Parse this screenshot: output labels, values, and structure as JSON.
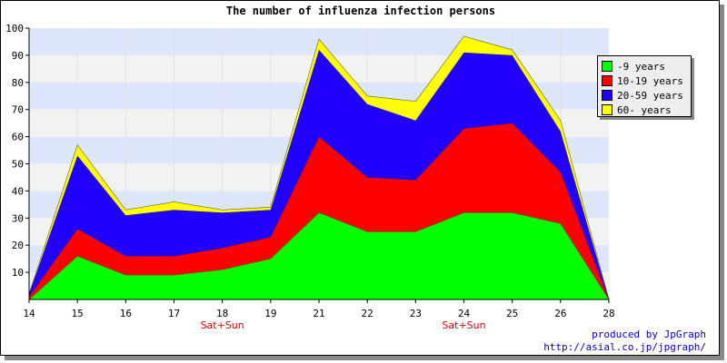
{
  "title": "The number of influenza infection persons",
  "chart_data": {
    "type": "area",
    "stacked": true,
    "title": "The number of influenza infection persons",
    "x": [
      "14",
      "15",
      "16",
      "17",
      "18",
      "19",
      "21",
      "22",
      "23",
      "24",
      "25",
      "26",
      "28"
    ],
    "ylim": [
      0,
      100
    ],
    "yticks": [
      10,
      20,
      30,
      40,
      50,
      60,
      70,
      80,
      90,
      100
    ],
    "grid": true,
    "legend_position": "right",
    "series": [
      {
        "name": "-9 years",
        "color": "#00ff00",
        "values": [
          0,
          16,
          9,
          9,
          11,
          15,
          32,
          25,
          25,
          32,
          32,
          28,
          0
        ]
      },
      {
        "name": "10-19 years",
        "color": "#ff0000",
        "values": [
          1,
          10,
          7,
          7,
          8,
          8,
          28,
          20,
          19,
          31,
          33,
          19,
          0
        ]
      },
      {
        "name": "20-59 years",
        "color": "#2200ff",
        "values": [
          1,
          27,
          15,
          17,
          13,
          10,
          32,
          27,
          22,
          28,
          25,
          15,
          0
        ]
      },
      {
        "name": "60- years",
        "color": "#ffff00",
        "values": [
          0,
          4,
          2,
          3,
          1,
          1,
          4,
          3,
          7,
          6,
          2,
          4,
          0
        ]
      }
    ],
    "annotations": [
      {
        "text": "Sat+Sun",
        "x_index": 4
      },
      {
        "text": "Sat+Sun",
        "x_index": 9
      }
    ]
  },
  "credit": {
    "line1": "produced by JpGraph",
    "line2": "http://asial.co.jp/jpgraph/"
  },
  "colors": {
    "band_a": "#dde6fb",
    "band_b": "#f2f2f2",
    "marker": "#dd0000",
    "credit": "#0000cc"
  }
}
